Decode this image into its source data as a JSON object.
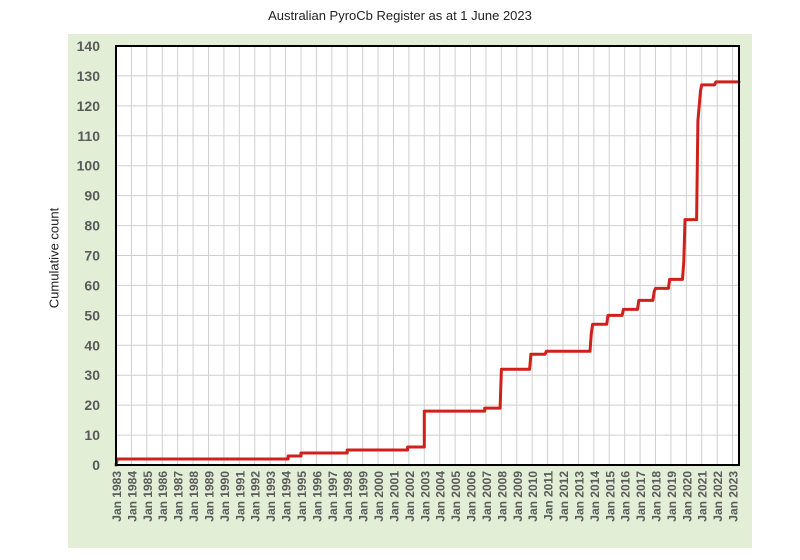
{
  "chart_data": {
    "type": "line",
    "title": "Australian PyroCb Register as at 1 June 2023",
    "xlabel": "",
    "ylabel": "Cumulative count",
    "ylim": [
      0,
      140
    ],
    "yticks": [
      0,
      10,
      20,
      30,
      40,
      50,
      60,
      70,
      80,
      90,
      100,
      110,
      120,
      130,
      140
    ],
    "xlim": [
      "1983-01",
      "2023-06"
    ],
    "xticks": [
      "Jan 1983",
      "Jan 1984",
      "Jan 1985",
      "Jan 1986",
      "Jan 1987",
      "Jan 1988",
      "Jan 1989",
      "Jan 1990",
      "Jan 1991",
      "Jan 1992",
      "Jan 1993",
      "Jan 1994",
      "Jan 1995",
      "Jan 1996",
      "Jan 1997",
      "Jan 1998",
      "Jan 1999",
      "Jan 2000",
      "Jan 2001",
      "Jan 2002",
      "Jan 2003",
      "Jan 2004",
      "Jan 2005",
      "Jan 2006",
      "Jan 2007",
      "Jan 2008",
      "Jan 2009",
      "Jan 2010",
      "Jan 2011",
      "Jan 2012",
      "Jan 2013",
      "Jan 2014",
      "Jan 2015",
      "Jan 2016",
      "Jan 2017",
      "Jan 2018",
      "Jan 2019",
      "Jan 2020",
      "Jan 2021",
      "Jan 2022",
      "Jan 2023"
    ],
    "grid": true,
    "colors": {
      "line": "#d0201c",
      "frame": "#e3eed6",
      "grid": "#cfcfcf",
      "axis_text": "#5a5a5a"
    },
    "series": [
      {
        "values": [
          {
            "x": "1983-01",
            "y": 0
          },
          {
            "x": "1983-02",
            "y": 2
          },
          {
            "x": "1994-03",
            "y": 2
          },
          {
            "x": "1994-03",
            "y": 3
          },
          {
            "x": "1995-01",
            "y": 3
          },
          {
            "x": "1995-01",
            "y": 4
          },
          {
            "x": "1998-01",
            "y": 4
          },
          {
            "x": "1998-01",
            "y": 5
          },
          {
            "x": "2001-12",
            "y": 5
          },
          {
            "x": "2001-12",
            "y": 6
          },
          {
            "x": "2003-01",
            "y": 6
          },
          {
            "x": "2003-01",
            "y": 18
          },
          {
            "x": "2006-12",
            "y": 18
          },
          {
            "x": "2006-12",
            "y": 19
          },
          {
            "x": "2007-12",
            "y": 19
          },
          {
            "x": "2008-01",
            "y": 32
          },
          {
            "x": "2009-11",
            "y": 32
          },
          {
            "x": "2009-12",
            "y": 37
          },
          {
            "x": "2010-11",
            "y": 37
          },
          {
            "x": "2010-12",
            "y": 38
          },
          {
            "x": "2013-10",
            "y": 38
          },
          {
            "x": "2013-11",
            "y": 44
          },
          {
            "x": "2013-12",
            "y": 47
          },
          {
            "x": "2014-11",
            "y": 47
          },
          {
            "x": "2014-12",
            "y": 50
          },
          {
            "x": "2015-11",
            "y": 50
          },
          {
            "x": "2015-12",
            "y": 52
          },
          {
            "x": "2016-11",
            "y": 52
          },
          {
            "x": "2016-12",
            "y": 55
          },
          {
            "x": "2017-11",
            "y": 55
          },
          {
            "x": "2017-12",
            "y": 58
          },
          {
            "x": "2018-01",
            "y": 59
          },
          {
            "x": "2018-11",
            "y": 59
          },
          {
            "x": "2018-12",
            "y": 62
          },
          {
            "x": "2019-10",
            "y": 62
          },
          {
            "x": "2019-11",
            "y": 68
          },
          {
            "x": "2019-12",
            "y": 82
          },
          {
            "x": "2020-09",
            "y": 82
          },
          {
            "x": "2020-10",
            "y": 115
          },
          {
            "x": "2020-12",
            "y": 125
          },
          {
            "x": "2021-01",
            "y": 127
          },
          {
            "x": "2021-11",
            "y": 127
          },
          {
            "x": "2021-12",
            "y": 128
          },
          {
            "x": "2023-06",
            "y": 128
          }
        ]
      }
    ]
  }
}
